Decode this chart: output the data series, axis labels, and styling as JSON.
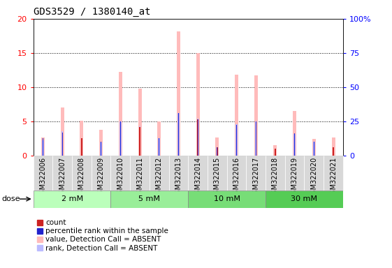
{
  "title": "GDS3529 / 1380140_at",
  "samples": [
    "GSM322006",
    "GSM322007",
    "GSM322008",
    "GSM322009",
    "GSM322010",
    "GSM322011",
    "GSM322012",
    "GSM322013",
    "GSM322014",
    "GSM322015",
    "GSM322016",
    "GSM322017",
    "GSM322018",
    "GSM322019",
    "GSM322020",
    "GSM322021"
  ],
  "count_values": [
    2.5,
    3.3,
    2.5,
    2.0,
    5.0,
    4.2,
    2.5,
    6.2,
    5.3,
    1.2,
    4.5,
    5.0,
    1.0,
    3.2,
    2.0,
    1.2
  ],
  "absent_value_bars": [
    2.6,
    7.0,
    5.1,
    3.7,
    12.2,
    9.8,
    5.0,
    18.2,
    15.0,
    2.6,
    11.8,
    11.7,
    1.5,
    6.5,
    2.4,
    2.6
  ],
  "absent_rank_bars": [
    2.2,
    3.5,
    2.4,
    1.9,
    5.0,
    4.3,
    2.5,
    6.2,
    5.4,
    1.2,
    4.6,
    5.0,
    1.0,
    3.1,
    2.0,
    1.1
  ],
  "doses": [
    {
      "label": "2 mM",
      "start": 0,
      "end": 4
    },
    {
      "label": "5 mM",
      "start": 4,
      "end": 8
    },
    {
      "label": "10 mM",
      "start": 8,
      "end": 12
    },
    {
      "label": "30 mM",
      "start": 12,
      "end": 16
    }
  ],
  "dose_colors": [
    "#bbffbb",
    "#99ee99",
    "#77dd77",
    "#55cc55"
  ],
  "ylim_left": [
    0,
    20
  ],
  "ylim_right": [
    0,
    100
  ],
  "yticks_left": [
    0,
    5,
    10,
    15,
    20
  ],
  "yticks_right": [
    0,
    25,
    50,
    75,
    100
  ],
  "color_count": "#cc2222",
  "color_rank": "#2222cc",
  "color_absent_value": "#ffbbbb",
  "color_absent_rank": "#bbbbff",
  "title_fontsize": 10,
  "tick_fontsize": 7,
  "legend_fontsize": 7.5,
  "bg_plot": "#ffffff",
  "bg_xticklabel": "#dddddd"
}
